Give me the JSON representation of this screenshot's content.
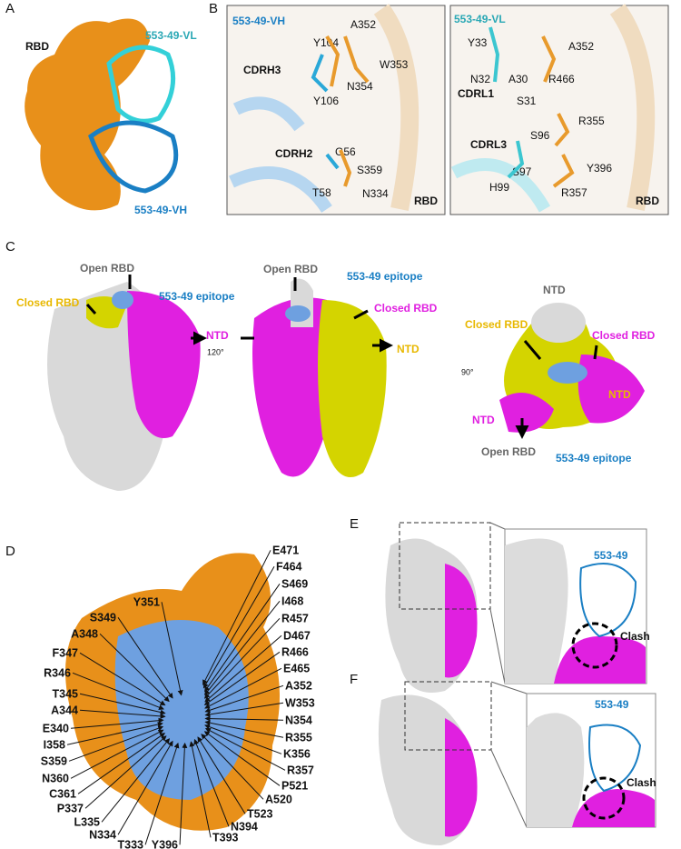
{
  "panel_a": {
    "label": "A",
    "rbd": "RBD",
    "vl": "553-49-VL",
    "vh": "553-49-VH"
  },
  "panel_b": {
    "label": "B",
    "left": {
      "chain": "553-49-VH",
      "residues": [
        "Y104",
        "A352",
        "CDRH3",
        "W353",
        "N354",
        "Y106",
        "CDRH2",
        "G56",
        "S359",
        "T58",
        "N334"
      ],
      "rbd": "RBD"
    },
    "right": {
      "chain": "553-49-VL",
      "residues": [
        "Y33",
        "A352",
        "N32",
        "A30",
        "R466",
        "CDRL1",
        "S31",
        "R355",
        "CDRL3",
        "S96",
        "S97",
        "H99",
        "Y396",
        "R357"
      ],
      "rbd": "RBD"
    }
  },
  "panel_c": {
    "label": "C",
    "view1": {
      "open": "Open RBD",
      "closed": "Closed RBD",
      "epitope": "553-49 epitope",
      "ntd": "NTD",
      "rotation": "120°"
    },
    "view2": {
      "open": "Open RBD",
      "epitope": "553-49 epitope",
      "closed": "Closed RBD",
      "ntd": "NTD"
    },
    "view3": {
      "ntd_top": "NTD",
      "closed_left": "Closed RBD",
      "closed_right": "Closed RBD",
      "rotation": "90°",
      "ntd_left": "NTD",
      "ntd_right": "NTD",
      "open": "Open RBD",
      "epitope": "553-49 epitope"
    }
  },
  "panel_d": {
    "label": "D",
    "residues": [
      "Y351",
      "S349",
      "A348",
      "F347",
      "R346",
      "T345",
      "A344",
      "E340",
      "I358",
      "S359",
      "N360",
      "C361",
      "P337",
      "L335",
      "N334",
      "T333",
      "Y396",
      "T393",
      "N394",
      "T523",
      "A520",
      "P521",
      "R357",
      "K356",
      "R355",
      "N354",
      "W353",
      "A352",
      "E465",
      "R466",
      "D467",
      "R457",
      "I468",
      "S469",
      "F464",
      "E471"
    ]
  },
  "panel_e": {
    "label": "E",
    "antibody": "553-49",
    "clash": "Clash"
  },
  "panel_f": {
    "label": "F",
    "antibody": "553-49",
    "clash": "Clash"
  }
}
